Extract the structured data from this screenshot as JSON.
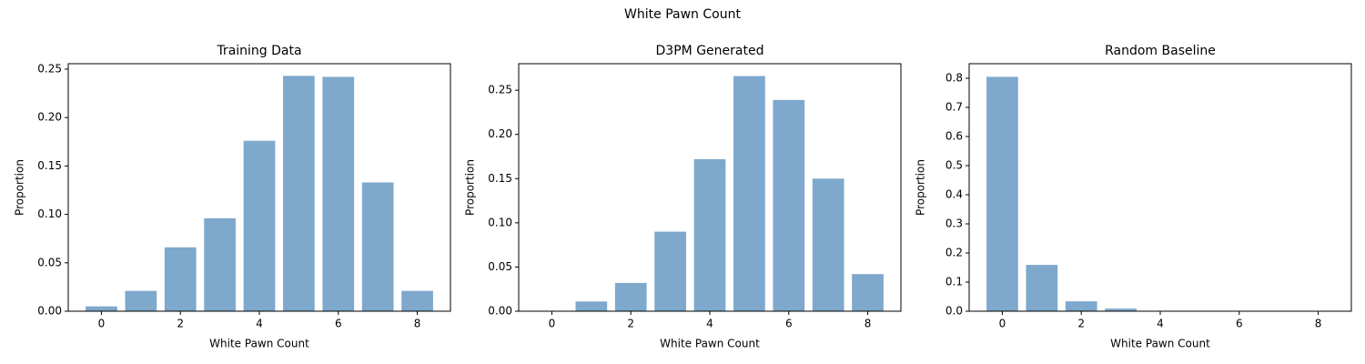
{
  "title": "White Pawn Count",
  "chart_data": [
    {
      "type": "bar",
      "title": "Training Data",
      "xlabel": "White Pawn Count",
      "ylabel": "Proportion",
      "color": "#7ea8cc",
      "x": [
        0,
        1,
        2,
        3,
        4,
        5,
        6,
        7,
        8
      ],
      "values": [
        0.005,
        0.021,
        0.066,
        0.096,
        0.176,
        0.243,
        0.242,
        0.133,
        0.021
      ],
      "xlim": [
        -0.84,
        8.84
      ],
      "xticks": [
        0,
        2,
        4,
        6,
        8
      ],
      "ylim": [
        0,
        0.2556
      ],
      "yticks": [
        {
          "value": 0,
          "label": "0.00"
        },
        0.05,
        {
          "value": 0.1,
          "label": "0.10"
        },
        0.15,
        {
          "value": 0.2,
          "label": "0.20"
        },
        0.25
      ]
    },
    {
      "type": "bar",
      "title": "D3PM Generated",
      "xlabel": "White Pawn Count",
      "ylabel": "Proportion",
      "color": "#7ea8cc",
      "x": [
        0,
        1,
        2,
        3,
        4,
        5,
        6,
        7,
        8
      ],
      "values": [
        0.0005,
        0.011,
        0.032,
        0.09,
        0.172,
        0.266,
        0.239,
        0.15,
        0.042
      ],
      "xlim": [
        -0.84,
        8.84
      ],
      "xticks": [
        0,
        2,
        4,
        6,
        8
      ],
      "ylim": [
        0,
        0.28
      ],
      "yticks": [
        {
          "value": 0,
          "label": "0.00"
        },
        0.05,
        {
          "value": 0.1,
          "label": "0.10"
        },
        0.15,
        {
          "value": 0.2,
          "label": "0.20"
        },
        0.25
      ]
    },
    {
      "type": "bar",
      "title": "Random Baseline",
      "xlabel": "White Pawn Count",
      "ylabel": "Proportion",
      "color": "#7ea8cc",
      "x": [
        0,
        1,
        2,
        3,
        4,
        5,
        6,
        7,
        8
      ],
      "values": [
        0.805,
        0.159,
        0.034,
        0.009,
        0.001,
        0,
        0,
        0,
        0
      ],
      "xlim": [
        -0.84,
        8.84
      ],
      "xticks": [
        0,
        2,
        4,
        6,
        8
      ],
      "ylim": [
        0,
        0.85
      ],
      "yticks": [
        {
          "value": 0,
          "label": "0.0"
        },
        0.1,
        0.2,
        0.3,
        0.4,
        0.5,
        0.6,
        0.7,
        0.8
      ]
    }
  ]
}
